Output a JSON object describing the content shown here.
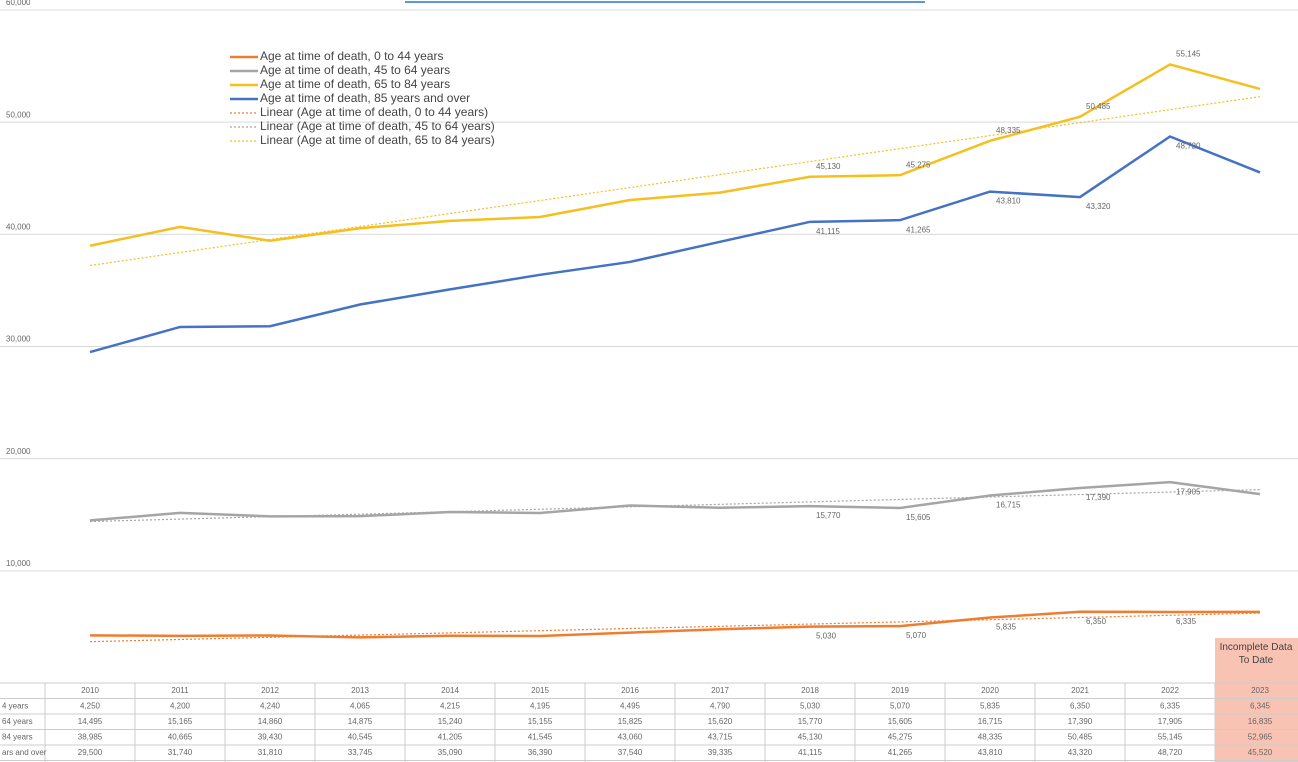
{
  "chart_data": {
    "type": "line",
    "categories": [
      "2010",
      "2011",
      "2012",
      "2013",
      "2014",
      "2015",
      "2016",
      "2017",
      "2018",
      "2019",
      "2020",
      "2021",
      "2022",
      "2023"
    ],
    "series": [
      {
        "name": "Age at time of death, 0 to 44 years",
        "color": "#ed7d31",
        "values": [
          4250,
          4200,
          4240,
          4065,
          4215,
          4195,
          4495,
          4790,
          5030,
          5070,
          5835,
          6350,
          6335,
          6345
        ],
        "value_labels": [
          "4,250",
          "4,200",
          "4,240",
          "4,065",
          "4,215",
          "4,195",
          "4,495",
          "4,790",
          "5,030",
          "5,070",
          "5,835",
          "6,350",
          "6,335",
          "6,345"
        ]
      },
      {
        "name": "Age at time of death, 45 to 64 years",
        "color": "#a5a5a5",
        "values": [
          14495,
          15165,
          14860,
          14875,
          15240,
          15155,
          15825,
          15620,
          15770,
          15605,
          16715,
          17390,
          17905,
          16835
        ],
        "value_labels": [
          "14,495",
          "15,165",
          "14,860",
          "14,875",
          "15,240",
          "15,155",
          "15,825",
          "15,620",
          "15,770",
          "15,605",
          "16,715",
          "17,390",
          "17,905",
          "16,835"
        ]
      },
      {
        "name": "Age at time of death, 65 to 84 years",
        "color": "#f5bf1f",
        "values": [
          38985,
          40665,
          39430,
          40545,
          41205,
          41545,
          43060,
          43715,
          45130,
          45275,
          48335,
          50485,
          55145,
          52965
        ],
        "value_labels": [
          "38,985",
          "40,665",
          "39,430",
          "40,545",
          "41,205",
          "41,545",
          "43,060",
          "43,715",
          "45,130",
          "45,275",
          "48,335",
          "50,485",
          "55,145",
          "52,965"
        ]
      },
      {
        "name": "Age at time of death, 85 years and over",
        "color": "#4472c4",
        "values": [
          29500,
          31740,
          31810,
          33745,
          35090,
          36390,
          37540,
          39335,
          41115,
          41265,
          43810,
          43320,
          48720,
          45520
        ],
        "value_labels": [
          "29,500",
          "31,740",
          "31,810",
          "33,745",
          "35,090",
          "36,390",
          "37,540",
          "39,335",
          "41,115",
          "41,265",
          "43,810",
          "43,320",
          "48,720",
          "45,520"
        ]
      }
    ],
    "trendlines": [
      {
        "name": "Linear (Age at time of death, 0 to 44 years)",
        "series": 0
      },
      {
        "name": "Linear (Age at time of death, 45 to 64 years)",
        "series": 1
      },
      {
        "name": "Linear (Age at time of death, 65 to 84 years)",
        "series": 2
      }
    ],
    "ylim": [
      0,
      60000
    ],
    "yticks": [
      {
        "value": 10000,
        "label": "10,000"
      },
      {
        "value": 20000,
        "label": "20,000"
      },
      {
        "value": 30000,
        "label": "30,000"
      },
      {
        "value": 40000,
        "label": "40,000"
      },
      {
        "value": 50000,
        "label": "50,000"
      },
      {
        "value": 60000,
        "label": "60,000"
      }
    ],
    "grid": true,
    "data_table": {
      "row_labels": [
        "4 years",
        "64 years",
        "84 years",
        "ars and over"
      ]
    },
    "annotation": "Incomplete Data To Date"
  }
}
